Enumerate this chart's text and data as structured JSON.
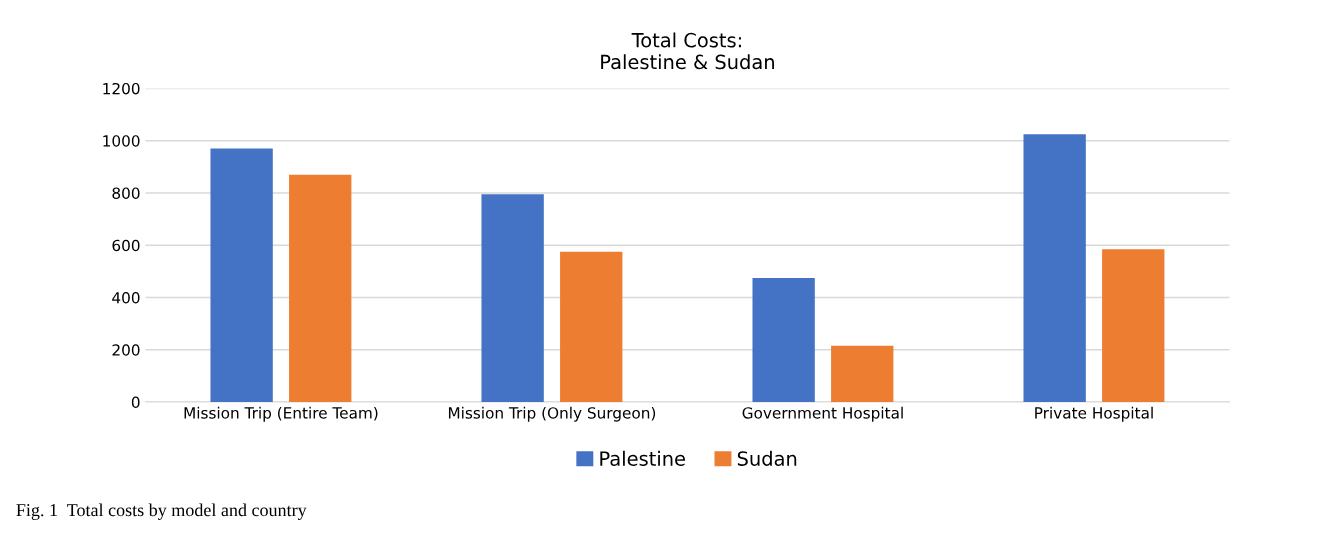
{
  "chart_data": {
    "type": "bar",
    "title": "Total Costs:\nPalestine & Sudan",
    "categories": [
      "Mission Trip (Entire Team)",
      "Mission Trip (Only Surgeon)",
      "Government Hospital",
      "Private Hospital"
    ],
    "series": [
      {
        "name": "Palestine",
        "color": "#4472c4",
        "values": [
          970,
          795,
          475,
          1025
        ]
      },
      {
        "name": "Sudan",
        "color": "#ed7d31",
        "values": [
          870,
          575,
          215,
          585
        ]
      }
    ],
    "ylim": [
      0,
      1200
    ],
    "yticks": [
      0,
      200,
      400,
      600,
      800,
      1000,
      1200
    ],
    "grid": "y",
    "legend": "bottom",
    "annotations": [
      "Fig. 1  Total costs by model and country"
    ]
  }
}
